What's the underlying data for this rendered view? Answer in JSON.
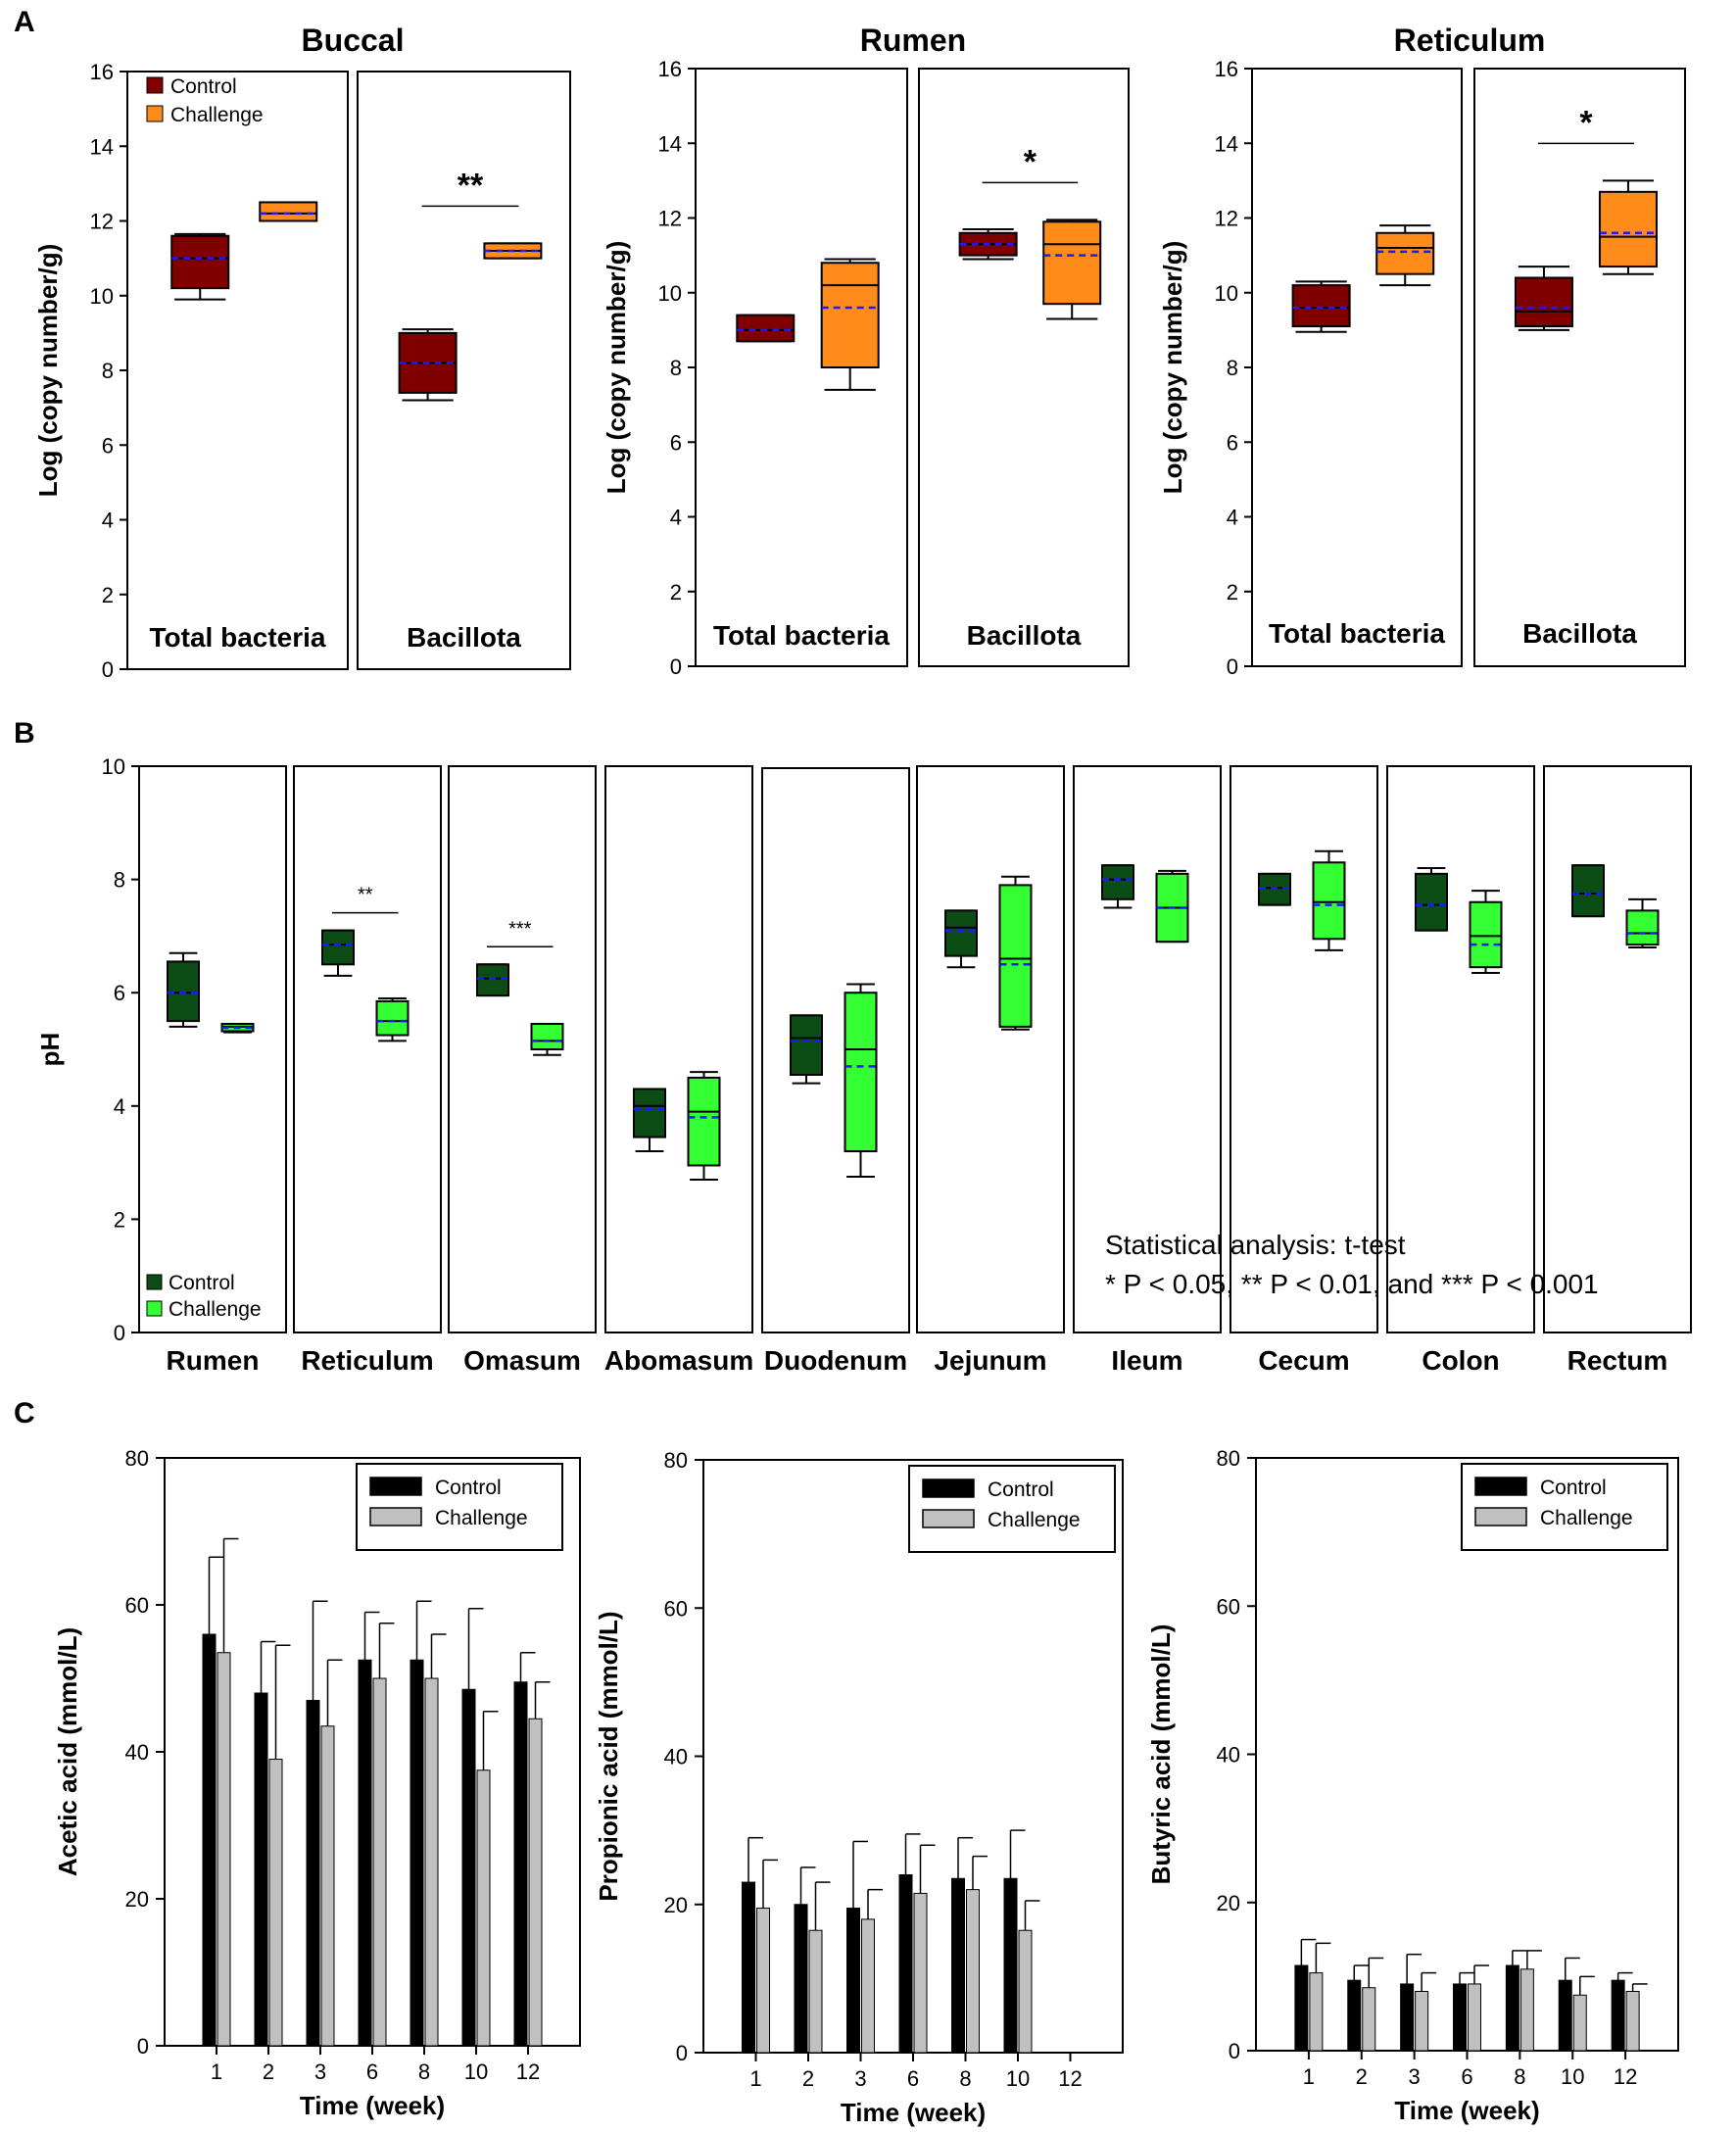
{
  "panel_labels": [
    "A",
    "B",
    "C"
  ],
  "chart_data": [
    {
      "id": "A-buccal",
      "type": "box",
      "title": "Buccal",
      "ylabel": "Log (copy number/g)",
      "ylim": [
        0,
        16
      ],
      "yticks": [
        0,
        2,
        4,
        6,
        8,
        10,
        12,
        14,
        16
      ],
      "legend": [
        "Control",
        "Challenge"
      ],
      "colors": {
        "Control": "#800000",
        "Challenge": "#ff8c1a"
      },
      "groups": [
        {
          "label": "Total bacteria",
          "significance": "",
          "boxes": [
            {
              "series": "Control",
              "min": 9.9,
              "q1": 10.2,
              "median": 11.0,
              "mean": 11.0,
              "q3": 11.6,
              "max": 11.65
            },
            {
              "series": "Challenge",
              "min": 12.0,
              "q1": 12.0,
              "median": 12.2,
              "mean": 12.2,
              "q3": 12.5,
              "max": 12.5
            }
          ]
        },
        {
          "label": "Bacillota",
          "significance": "**",
          "boxes": [
            {
              "series": "Control",
              "min": 7.2,
              "q1": 7.4,
              "median": 8.2,
              "mean": 8.2,
              "q3": 9.0,
              "max": 9.1
            },
            {
              "series": "Challenge",
              "min": 11.0,
              "q1": 11.0,
              "median": 11.2,
              "mean": 11.2,
              "q3": 11.4,
              "max": 11.4
            }
          ]
        }
      ]
    },
    {
      "id": "A-rumen",
      "type": "box",
      "title": "Rumen",
      "ylabel": "Log (copy number/g)",
      "ylim": [
        0,
        16
      ],
      "yticks": [
        0,
        2,
        4,
        6,
        8,
        10,
        12,
        14,
        16
      ],
      "groups": [
        {
          "label": "Total bacteria",
          "significance": "",
          "boxes": [
            {
              "series": "Control",
              "min": 8.7,
              "q1": 8.7,
              "median": 9.0,
              "mean": 9.0,
              "q3": 9.4,
              "max": 9.4
            },
            {
              "series": "Challenge",
              "min": 7.4,
              "q1": 8.0,
              "median": 10.2,
              "mean": 9.6,
              "q3": 10.8,
              "max": 10.9
            }
          ]
        },
        {
          "label": "Bacillota",
          "significance": "*",
          "boxes": [
            {
              "series": "Control",
              "min": 10.9,
              "q1": 11.0,
              "median": 11.3,
              "mean": 11.3,
              "q3": 11.6,
              "max": 11.7
            },
            {
              "series": "Challenge",
              "min": 9.3,
              "q1": 9.7,
              "median": 11.3,
              "mean": 11.0,
              "q3": 11.9,
              "max": 11.95
            }
          ]
        }
      ]
    },
    {
      "id": "A-reticulum",
      "type": "box",
      "title": "Reticulum",
      "ylabel": "Log (copy number/g)",
      "ylim": [
        0,
        16
      ],
      "yticks": [
        0,
        2,
        4,
        6,
        8,
        10,
        12,
        14,
        16
      ],
      "groups": [
        {
          "label": "Total bacteria",
          "significance": "",
          "boxes": [
            {
              "series": "Control",
              "min": 8.95,
              "q1": 9.1,
              "median": 9.6,
              "mean": 9.6,
              "q3": 10.2,
              "max": 10.3
            },
            {
              "series": "Challenge",
              "min": 10.2,
              "q1": 10.5,
              "median": 11.2,
              "mean": 11.1,
              "q3": 11.6,
              "max": 11.8
            }
          ]
        },
        {
          "label": "Bacillota",
          "significance": "*",
          "boxes": [
            {
              "series": "Control",
              "min": 9.0,
              "q1": 9.1,
              "median": 9.5,
              "mean": 9.6,
              "q3": 10.4,
              "max": 10.7
            },
            {
              "series": "Challenge",
              "min": 10.5,
              "q1": 10.7,
              "median": 11.5,
              "mean": 11.6,
              "q3": 12.7,
              "max": 13.0
            }
          ]
        }
      ]
    },
    {
      "id": "B-pH",
      "type": "box",
      "ylabel": "pH",
      "ylim": [
        0,
        10
      ],
      "yticks": [
        0,
        2,
        4,
        6,
        8,
        10
      ],
      "legend": [
        "Control",
        "Challenge"
      ],
      "colors": {
        "Control": "#0b4d14",
        "Challenge": "#33ff33"
      },
      "stat_note": [
        "Statistical analysis: t-test",
        "* P < 0.05, ** P < 0.01, and *** P < 0.001"
      ],
      "groups": [
        {
          "label": "Rumen",
          "significance": "",
          "boxes": [
            {
              "series": "Control",
              "min": 5.4,
              "q1": 5.5,
              "median": 6.0,
              "mean": 6.0,
              "q3": 6.55,
              "max": 6.7
            },
            {
              "series": "Challenge",
              "min": 5.3,
              "q1": 5.32,
              "median": 5.4,
              "mean": 5.38,
              "q3": 5.45,
              "max": 5.45
            }
          ]
        },
        {
          "label": "Reticulum",
          "significance": "**",
          "boxes": [
            {
              "series": "Control",
              "min": 6.3,
              "q1": 6.5,
              "median": 6.85,
              "mean": 6.85,
              "q3": 7.1,
              "max": 7.1
            },
            {
              "series": "Challenge",
              "min": 5.15,
              "q1": 5.25,
              "median": 5.5,
              "mean": 5.5,
              "q3": 5.85,
              "max": 5.9
            }
          ]
        },
        {
          "label": "Omasum",
          "significance": "***",
          "boxes": [
            {
              "series": "Control",
              "min": 5.95,
              "q1": 5.95,
              "median": 6.25,
              "mean": 6.25,
              "q3": 6.5,
              "max": 6.5
            },
            {
              "series": "Challenge",
              "min": 4.9,
              "q1": 5.0,
              "median": 5.15,
              "mean": 5.15,
              "q3": 5.45,
              "max": 5.45
            }
          ]
        },
        {
          "label": "Abomasum",
          "significance": "",
          "boxes": [
            {
              "series": "Control",
              "min": 3.2,
              "q1": 3.45,
              "median": 4.0,
              "mean": 3.95,
              "q3": 4.3,
              "max": 4.3
            },
            {
              "series": "Challenge",
              "min": 2.7,
              "q1": 2.95,
              "median": 3.9,
              "mean": 3.8,
              "q3": 4.5,
              "max": 4.6
            }
          ]
        },
        {
          "label": "Duodenum",
          "significance": "",
          "boxes": [
            {
              "series": "Control",
              "min": 4.4,
              "q1": 4.55,
              "median": 5.2,
              "mean": 5.15,
              "q3": 5.6,
              "max": 5.6
            },
            {
              "series": "Challenge",
              "min": 2.75,
              "q1": 3.2,
              "median": 5.0,
              "mean": 4.7,
              "q3": 6.0,
              "max": 6.15
            }
          ]
        },
        {
          "label": "Jejunum",
          "significance": "",
          "boxes": [
            {
              "series": "Control",
              "min": 6.45,
              "q1": 6.65,
              "median": 7.15,
              "mean": 7.1,
              "q3": 7.45,
              "max": 7.45
            },
            {
              "series": "Challenge",
              "min": 5.35,
              "q1": 5.4,
              "median": 6.6,
              "mean": 6.5,
              "q3": 7.9,
              "max": 8.05
            }
          ]
        },
        {
          "label": "Ileum",
          "significance": "",
          "boxes": [
            {
              "series": "Control",
              "min": 7.5,
              "q1": 7.65,
              "median": 8.0,
              "mean": 8.0,
              "q3": 8.25,
              "max": 8.25
            },
            {
              "series": "Challenge",
              "min": 6.9,
              "q1": 6.9,
              "median": 7.5,
              "mean": 7.5,
              "q3": 8.1,
              "max": 8.15
            }
          ]
        },
        {
          "label": "Cecum",
          "significance": "",
          "boxes": [
            {
              "series": "Control",
              "min": 7.55,
              "q1": 7.55,
              "median": 7.85,
              "mean": 7.85,
              "q3": 8.1,
              "max": 8.1
            },
            {
              "series": "Challenge",
              "min": 6.75,
              "q1": 6.95,
              "median": 7.6,
              "mean": 7.55,
              "q3": 8.3,
              "max": 8.5
            }
          ]
        },
        {
          "label": "Colon",
          "significance": "",
          "boxes": [
            {
              "series": "Control",
              "min": 7.1,
              "q1": 7.1,
              "median": 7.55,
              "mean": 7.55,
              "q3": 8.1,
              "max": 8.2
            },
            {
              "series": "Challenge",
              "min": 6.35,
              "q1": 6.45,
              "median": 7.0,
              "mean": 6.85,
              "q3": 7.6,
              "max": 7.8
            }
          ]
        },
        {
          "label": "Rectum",
          "significance": "",
          "boxes": [
            {
              "series": "Control",
              "min": 7.35,
              "q1": 7.35,
              "median": 7.75,
              "mean": 7.75,
              "q3": 8.25,
              "max": 8.25
            },
            {
              "series": "Challenge",
              "min": 6.8,
              "q1": 6.85,
              "median": 7.05,
              "mean": 7.05,
              "q3": 7.45,
              "max": 7.65
            }
          ]
        }
      ]
    },
    {
      "id": "C-acetic",
      "type": "bar",
      "xlabel": "Time (week)",
      "ylabel": "Acetic acid (mmol/L)",
      "ylim": [
        0,
        80
      ],
      "yticks": [
        0,
        20,
        40,
        60,
        80
      ],
      "categories": [
        "1",
        "2",
        "3",
        "6",
        "8",
        "10",
        "12"
      ],
      "legend": [
        "Control",
        "Challenge"
      ],
      "series": [
        {
          "name": "Control",
          "color": "#000000",
          "values": [
            56,
            48,
            47,
            52.5,
            52.5,
            48.5,
            49.5
          ],
          "errors": [
            10.5,
            7,
            13.5,
            6.5,
            8,
            11,
            4
          ]
        },
        {
          "name": "Challenge",
          "color": "#c0c0c0",
          "values": [
            53.5,
            39,
            43.5,
            50,
            50,
            37.5,
            44.5
          ],
          "errors": [
            15.5,
            15.5,
            9,
            7.5,
            6,
            8,
            5
          ]
        }
      ]
    },
    {
      "id": "C-propionic",
      "type": "bar",
      "xlabel": "Time (week)",
      "ylabel": "Propionic acid (mmol/L)",
      "ylim": [
        0,
        80
      ],
      "yticks": [
        0,
        20,
        40,
        60,
        80
      ],
      "categories": [
        "1",
        "2",
        "3",
        "6",
        "8",
        "10",
        "12"
      ],
      "legend": [
        "Control",
        "Challenge"
      ],
      "series": [
        {
          "name": "Control",
          "color": "#000000",
          "values": [
            23,
            20,
            19.5,
            24,
            23.5,
            23.5,
            null
          ],
          "errors": [
            6,
            5,
            9,
            5.5,
            5.5,
            6.5,
            null
          ]
        },
        {
          "name": "Challenge",
          "color": "#c0c0c0",
          "values": [
            19.5,
            16.5,
            18,
            21.5,
            22,
            16.5,
            null
          ],
          "errors": [
            6.5,
            6.5,
            4,
            6.5,
            4.5,
            4,
            null
          ]
        }
      ]
    },
    {
      "id": "C-butyric",
      "type": "bar",
      "xlabel": "Time (week)",
      "ylabel": "Butyric acid (mmol/L)",
      "ylim": [
        0,
        80
      ],
      "yticks": [
        0,
        20,
        40,
        60,
        80
      ],
      "categories": [
        "1",
        "2",
        "3",
        "6",
        "8",
        "10",
        "12"
      ],
      "legend": [
        "Control",
        "Challenge"
      ],
      "series": [
        {
          "name": "Control",
          "color": "#000000",
          "values": [
            11.5,
            9.5,
            9,
            9,
            11.5,
            9.5,
            9.5
          ],
          "errors": [
            3.5,
            2,
            4,
            1.5,
            2,
            3,
            1
          ]
        },
        {
          "name": "Challenge",
          "color": "#c0c0c0",
          "values": [
            10.5,
            8.5,
            8,
            9,
            11,
            7.5,
            8
          ],
          "errors": [
            4,
            4,
            2.5,
            2.5,
            2.5,
            2.5,
            1
          ]
        }
      ]
    }
  ]
}
